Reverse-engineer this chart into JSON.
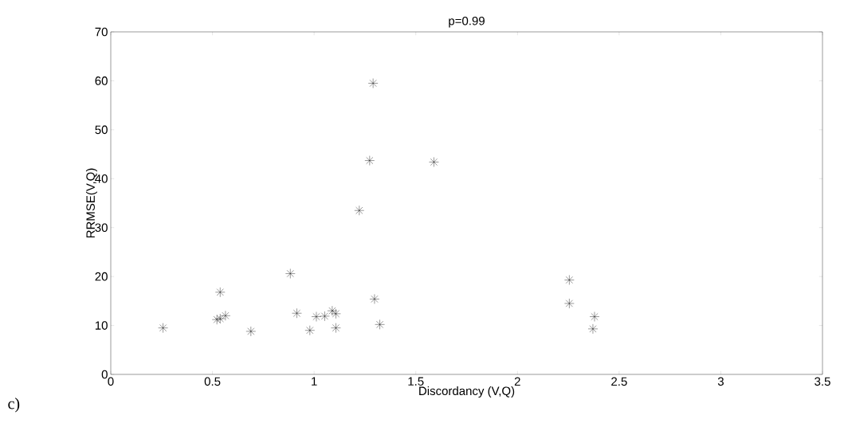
{
  "chart_data": {
    "type": "scatter",
    "title": "p=0.99",
    "xlabel": "Discordancy (V,Q)",
    "ylabel": "RRMSE(V,Q)",
    "annotations": [
      "c)"
    ],
    "x": [
      0.257,
      0.538,
      0.522,
      0.538,
      0.564,
      0.689,
      0.883,
      0.915,
      0.979,
      1.011,
      1.052,
      1.089,
      1.107,
      1.107,
      1.297,
      1.323,
      1.29,
      1.273,
      1.589,
      1.222,
      2.255,
      2.255,
      2.379,
      2.371
    ],
    "values": [
      9.5,
      16.8,
      11.2,
      11.4,
      12.0,
      8.8,
      20.6,
      12.5,
      9.0,
      11.8,
      11.9,
      13.0,
      12.4,
      9.5,
      15.4,
      10.2,
      59.5,
      43.7,
      43.4,
      33.5,
      19.3,
      14.5,
      11.8,
      9.3
    ],
    "color": "#000000",
    "marker": "cross",
    "grid": false,
    "xlim": [
      0,
      3.5
    ],
    "ylim": [
      0,
      70
    ],
    "xticks": [
      0,
      0.5,
      1,
      1.5,
      2,
      2.5,
      3,
      3.5
    ],
    "yticks": [
      0,
      10,
      20,
      30,
      40,
      50,
      60,
      70
    ]
  }
}
